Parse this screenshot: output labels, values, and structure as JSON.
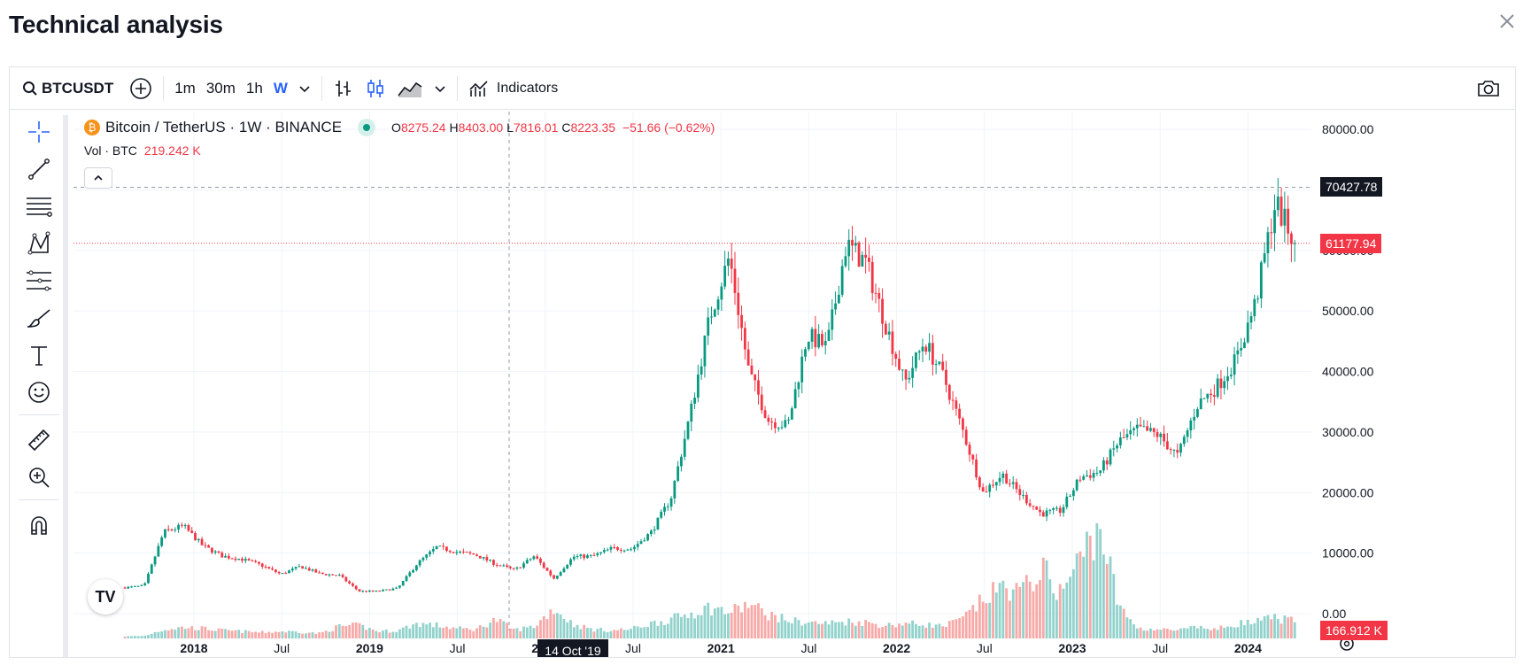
{
  "page": {
    "title": "Technical analysis"
  },
  "toolbar": {
    "symbol": "BTCUSDT",
    "intervals": [
      "1m",
      "30m",
      "1h",
      "W"
    ],
    "active_interval": "W",
    "indicators_label": "Indicators"
  },
  "legend": {
    "name": "Bitcoin / TetherUS · 1W · BINANCE",
    "o_label": "O",
    "o_value": "8275.24",
    "h_label": "H",
    "h_value": "8403.00",
    "l_label": "L",
    "l_value": "7816.01",
    "c_label": "C",
    "c_value": "8223.35",
    "change": "−51.66 (−0.62%)",
    "vol_label": "Vol · BTC",
    "vol_value": "219.242 K"
  },
  "price_axis": {
    "ticks": [
      "80000.00",
      "70000.00",
      "60000.00",
      "50000.00",
      "40000.00",
      "30000.00",
      "20000.00",
      "10000.00",
      "0.00"
    ],
    "crosshair_price": "70427.78",
    "last_price": "61177.94",
    "last_volume": "166.912 K"
  },
  "time_axis": {
    "ticks": [
      "2018",
      "Jul",
      "2019",
      "Jul",
      "2020",
      "Jul",
      "2021",
      "Jul",
      "2022",
      "Jul",
      "2023",
      "Jul",
      "2024"
    ],
    "crosshair_date": "14 Oct '19"
  },
  "colors": {
    "up": "#089981",
    "down": "#f23645",
    "vol_up": "#92d2cc",
    "vol_down": "#f7a9a7",
    "accent": "#2962ff"
  },
  "chart_data": {
    "type": "candlestick",
    "symbol": "BTCUSDT",
    "interval": "1W",
    "x": [
      "2017-08",
      "2017-10",
      "2017-12",
      "2018-01",
      "2018-02",
      "2018-03",
      "2018-04",
      "2018-05",
      "2018-06",
      "2018-07",
      "2018-09",
      "2018-11",
      "2018-12",
      "2019-02",
      "2019-04",
      "2019-05",
      "2019-06",
      "2019-07",
      "2019-09",
      "2019-10",
      "2019-12",
      "2020-02",
      "2020-03",
      "2020-05",
      "2020-07",
      "2020-09",
      "2020-10",
      "2020-11",
      "2020-12",
      "2021-01",
      "2021-02",
      "2021-04",
      "2021-05",
      "2021-06",
      "2021-07",
      "2021-08",
      "2021-09",
      "2021-10",
      "2021-11",
      "2021-12",
      "2022-01",
      "2022-03",
      "2022-04",
      "2022-05",
      "2022-06",
      "2022-08",
      "2022-09",
      "2022-11",
      "2022-12",
      "2023-01",
      "2023-03",
      "2023-04",
      "2023-06",
      "2023-07",
      "2023-08",
      "2023-10",
      "2023-11",
      "2024-01",
      "2024-02",
      "2024-03",
      "2024-04"
    ],
    "close": [
      4300,
      4600,
      13500,
      14500,
      11200,
      9500,
      9000,
      8000,
      6500,
      7800,
      6600,
      6300,
      3700,
      3700,
      4200,
      8300,
      11000,
      10200,
      9700,
      8200,
      7200,
      9500,
      5800,
      9400,
      9500,
      10800,
      10700,
      13500,
      19000,
      33000,
      49000,
      59000,
      40000,
      32000,
      31000,
      46000,
      44000,
      61000,
      58000,
      48000,
      38000,
      45000,
      39000,
      30000,
      20000,
      23000,
      19500,
      16500,
      17000,
      22500,
      23500,
      28500,
      30500,
      29500,
      26000,
      34500,
      37500,
      42000,
      51500,
      68000,
      61177.94
    ],
    "volume_k": [
      20,
      25,
      90,
      110,
      100,
      80,
      70,
      60,
      70,
      65,
      50,
      120,
      130,
      70,
      80,
      150,
      130,
      100,
      90,
      190,
      85,
      120,
      300,
      140,
      90,
      80,
      95,
      150,
      190,
      250,
      310,
      260,
      340,
      240,
      180,
      160,
      150,
      170,
      160,
      130,
      150,
      140,
      120,
      200,
      380,
      520,
      460,
      700,
      450,
      800,
      1150,
      300,
      100,
      90,
      80,
      110,
      90,
      150,
      160,
      210,
      166.912
    ],
    "volume_unit": "K BTC",
    "ylim": [
      0,
      80000
    ],
    "crosshair": {
      "date": "14 Oct '19",
      "price": 70427.78
    },
    "last": {
      "price": 61177.94,
      "volume": "166.912 K"
    }
  }
}
